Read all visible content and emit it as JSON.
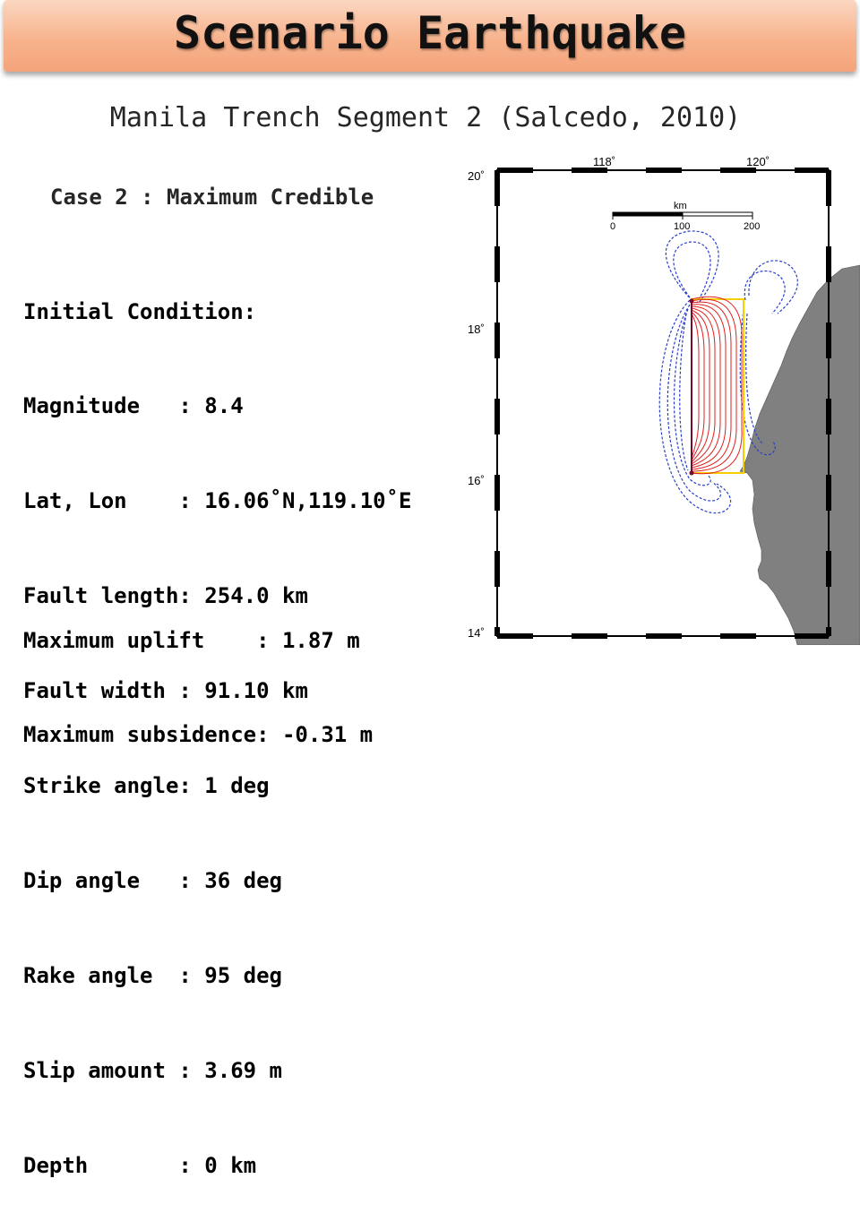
{
  "title": "Scenario Earthquake",
  "subtitle": "Manila Trench Segment 2 (Salcedo, 2010)",
  "case_title": "Case 2 : Maximum Credible",
  "params": [
    {
      "label": "Initial Condition:",
      "value": ""
    },
    {
      "label": "Magnitude   : ",
      "value": "8.4"
    },
    {
      "label": "Lat, Lon    : ",
      "value": "16.06˚N,119.10˚E"
    },
    {
      "label": "Fault length: ",
      "value": "254.0 km"
    },
    {
      "label": "Fault width : ",
      "value": "91.10 km"
    },
    {
      "label": "Strike angle: ",
      "value": "1 deg"
    },
    {
      "label": "Dip angle   : ",
      "value": "36 deg"
    },
    {
      "label": "Rake angle  : ",
      "value": "95 deg"
    },
    {
      "label": "Slip amount : ",
      "value": "3.69 m"
    },
    {
      "label": "Depth       : ",
      "value": "0 km"
    }
  ],
  "results": [
    {
      "label": "Maximum uplift    : ",
      "value": "1.87 m"
    },
    {
      "label": "Maximum subsidence: ",
      "value": "-0.31 m"
    }
  ],
  "map": {
    "lon_labels": [
      "118˚",
      "120˚"
    ],
    "lat_labels": [
      "20˚",
      "18˚",
      "16˚",
      "14˚"
    ],
    "scale_unit": "km",
    "scale_ticks": [
      "0",
      "100",
      "200"
    ],
    "colors": {
      "uplift": "#e0201c",
      "subsidence": "#2a3fc8",
      "fault": "#f5d000",
      "land": "#808080"
    }
  }
}
